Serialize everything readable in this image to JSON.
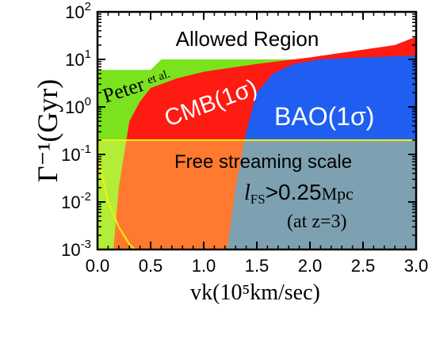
{
  "chart_data": {
    "type": "area",
    "ylabel": "Γ⁻¹(Gyr)",
    "xlabel": "vk(10⁵km/sec)",
    "x_range": [
      0.0,
      3.0
    ],
    "y_range": [
      0.001,
      100
    ],
    "y_scale": "log",
    "x_ticks": [
      "0.0",
      "0.5",
      "1.0",
      "1.5",
      "2.0",
      "2.5",
      "3.0"
    ],
    "y_ticks": [
      {
        "value": 100,
        "base": "10",
        "exp": "2"
      },
      {
        "value": 10,
        "base": "10",
        "exp": "1"
      },
      {
        "value": 1,
        "base": "10",
        "exp": "0"
      },
      {
        "value": 0.1,
        "base": "10",
        "exp": "-1"
      },
      {
        "value": 0.01,
        "base": "10",
        "exp": "-2"
      },
      {
        "value": 0.001,
        "base": "10",
        "exp": "-3"
      }
    ],
    "regions": [
      {
        "name": "Peter et al.",
        "color": "#7be21f",
        "boundary": [
          [
            0.0,
            6.0
          ],
          [
            0.5,
            6.0
          ],
          [
            0.6,
            10.0
          ],
          [
            3.0,
            10.0
          ]
        ]
      },
      {
        "name": "CMB(1σ)",
        "color": "#ff1a12",
        "boundary": [
          [
            0.15,
            0.001
          ],
          [
            0.2,
            0.02
          ],
          [
            0.3,
            0.5
          ],
          [
            0.4,
            1.3
          ],
          [
            0.5,
            2.5
          ],
          [
            0.75,
            4.0
          ],
          [
            1.0,
            5.5
          ],
          [
            1.5,
            8.0
          ],
          [
            2.0,
            11.0
          ],
          [
            2.5,
            16.0
          ],
          [
            2.8,
            20.0
          ],
          [
            3.0,
            30.0
          ]
        ]
      },
      {
        "name": "BAO(1σ)",
        "color": "#1f5ef0",
        "boundary": [
          [
            1.22,
            0.001
          ],
          [
            1.3,
            0.02
          ],
          [
            1.4,
            0.3
          ],
          [
            1.5,
            2.0
          ],
          [
            1.65,
            5.0
          ],
          [
            1.85,
            8.0
          ],
          [
            2.1,
            10.0
          ],
          [
            2.5,
            11.0
          ],
          [
            3.0,
            12.0
          ]
        ]
      },
      {
        "name": "Free streaming scale",
        "color": "#ffff5a",
        "y_top": 0.2,
        "boundary": [
          [
            0.0,
            0.2
          ],
          [
            0.03,
            0.05
          ],
          [
            0.1,
            0.01
          ],
          [
            0.2,
            0.003
          ],
          [
            0.3,
            0.0013
          ],
          [
            0.35,
            0.001
          ]
        ]
      }
    ],
    "annotations": {
      "allowed": "Allowed Region",
      "peter_main": "Peter",
      "peter_sub": "et al.",
      "cmb": "CMB(1σ)",
      "bao": "BAO(1σ)",
      "free_streaming": "Free streaming scale",
      "lfs_sym": "l",
      "lfs_sub": "FS",
      "lfs_val": ">0.25",
      "lfs_unit": "Mpc",
      "at_z": "(at z=3)"
    }
  }
}
